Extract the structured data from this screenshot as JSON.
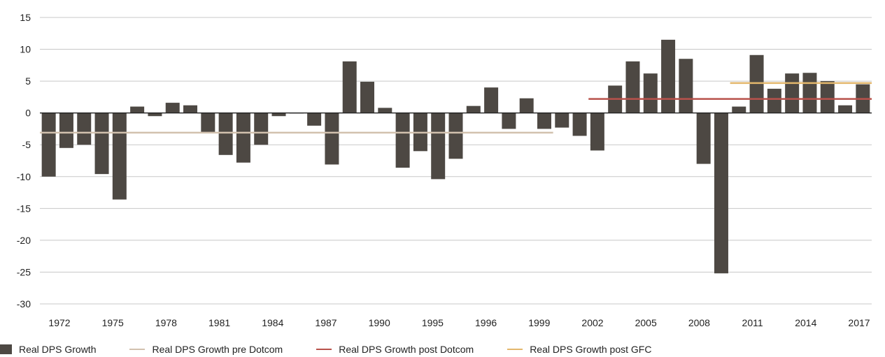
{
  "chart_data": {
    "type": "bar",
    "title": "",
    "xlabel": "",
    "ylabel": "",
    "ylim": [
      -30,
      15
    ],
    "y_ticks": [
      "15",
      "10",
      "5",
      "0",
      "-5",
      "-10",
      "-15",
      "-20",
      "-25",
      "-30"
    ],
    "grid": "horizontal",
    "legend_position": "bottom",
    "x_tick_labels": [
      "1972",
      "1975",
      "1978",
      "1981",
      "1984",
      "1987",
      "1990",
      "1995",
      "1996",
      "1999",
      "2002",
      "2005",
      "2008",
      "2011",
      "2014",
      "2017"
    ],
    "series": [
      {
        "name": "Real DPS Growth",
        "kind": "bar",
        "color": "#4d4843",
        "values": [
          -10.0,
          -5.5,
          -5.0,
          -9.6,
          -13.6,
          1.0,
          -0.5,
          1.6,
          1.2,
          -3.2,
          -6.6,
          -7.8,
          -5.0,
          -0.5,
          0,
          -2.0,
          -8.1,
          8.1,
          4.9,
          0.8,
          -8.6,
          -6.0,
          -10.4,
          -7.2,
          1.1,
          4.0,
          -2.5,
          2.3,
          -2.5,
          -2.3,
          -3.6,
          -5.9,
          4.3,
          8.1,
          6.2,
          11.5,
          8.5,
          -8.0,
          -25.2,
          1.0,
          9.1,
          3.8,
          6.2,
          6.3,
          5.0,
          1.2,
          4.5
        ]
      },
      {
        "name": "Real DPS Growth pre Dotcom",
        "kind": "line",
        "color": "#d2c1ae",
        "start_bar": 0,
        "end_bar": 28,
        "value": -3.1
      },
      {
        "name": "Real DPS Growth post Dotcom",
        "kind": "line",
        "color": "#b8524b",
        "start_bar": 31,
        "end_bar": 46,
        "value": 2.2
      },
      {
        "name": "Real DPS Growth post GFC",
        "kind": "line",
        "color": "#e3b76c",
        "start_bar": 39,
        "end_bar": 46,
        "value": 4.7
      }
    ]
  }
}
